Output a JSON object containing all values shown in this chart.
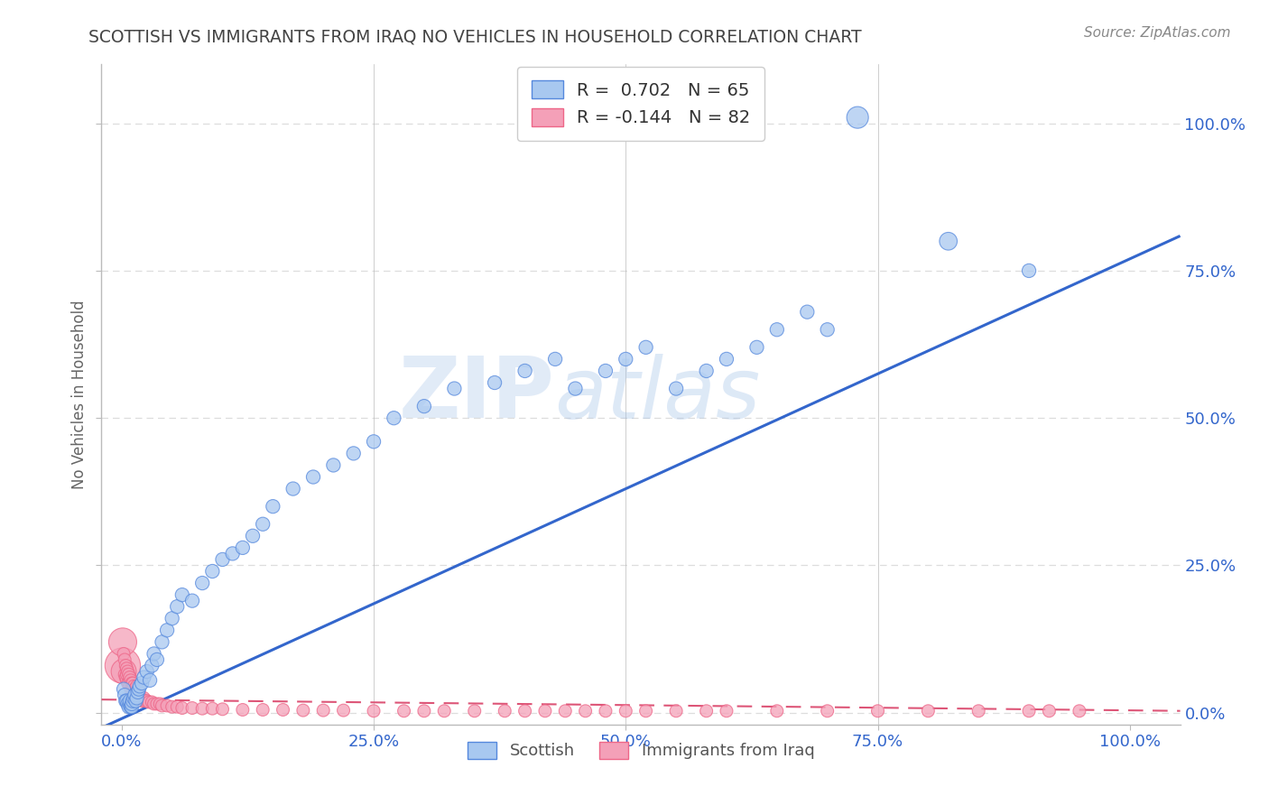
{
  "title": "SCOTTISH VS IMMIGRANTS FROM IRAQ NO VEHICLES IN HOUSEHOLD CORRELATION CHART",
  "source": "Source: ZipAtlas.com",
  "ylabel": "No Vehicles in Household",
  "watermark_zip": "ZIP",
  "watermark_atlas": "atlas",
  "legend_blue_r": "R =  0.702",
  "legend_blue_n": "N = 65",
  "legend_pink_r": "R = -0.144",
  "legend_pink_n": "N = 82",
  "ytick_labels": [
    "0.0%",
    "25.0%",
    "50.0%",
    "75.0%",
    "100.0%"
  ],
  "ytick_values": [
    0,
    0.25,
    0.5,
    0.75,
    1.0
  ],
  "xtick_labels": [
    "0.0%",
    "25.0%",
    "50.0%",
    "75.0%",
    "100.0%"
  ],
  "xtick_values": [
    0,
    0.25,
    0.5,
    0.75,
    1.0
  ],
  "blue_fill": "#A8C8F0",
  "pink_fill": "#F4A0B8",
  "blue_edge": "#5588DD",
  "pink_edge": "#EE6688",
  "blue_line": "#3366CC",
  "pink_line": "#DD5577",
  "background_color": "#FFFFFF",
  "grid_color": "#DDDDDD",
  "title_color": "#444444",
  "axis_label_color": "#3366CC",
  "blue_scatter_x": [
    0.002,
    0.003,
    0.004,
    0.005,
    0.006,
    0.007,
    0.008,
    0.008,
    0.009,
    0.01,
    0.01,
    0.011,
    0.012,
    0.013,
    0.014,
    0.015,
    0.016,
    0.017,
    0.018,
    0.02,
    0.022,
    0.025,
    0.028,
    0.03,
    0.032,
    0.035,
    0.04,
    0.045,
    0.05,
    0.055,
    0.06,
    0.07,
    0.08,
    0.09,
    0.1,
    0.11,
    0.12,
    0.13,
    0.14,
    0.15,
    0.17,
    0.19,
    0.21,
    0.23,
    0.25,
    0.27,
    0.3,
    0.33,
    0.37,
    0.4,
    0.43,
    0.45,
    0.48,
    0.5,
    0.52,
    0.55,
    0.58,
    0.6,
    0.63,
    0.65,
    0.68,
    0.7,
    0.73,
    0.82,
    0.9
  ],
  "blue_scatter_y": [
    0.04,
    0.03,
    0.02,
    0.02,
    0.015,
    0.01,
    0.015,
    0.02,
    0.01,
    0.01,
    0.015,
    0.02,
    0.025,
    0.03,
    0.02,
    0.025,
    0.035,
    0.04,
    0.045,
    0.05,
    0.06,
    0.07,
    0.055,
    0.08,
    0.1,
    0.09,
    0.12,
    0.14,
    0.16,
    0.18,
    0.2,
    0.19,
    0.22,
    0.24,
    0.26,
    0.27,
    0.28,
    0.3,
    0.32,
    0.35,
    0.38,
    0.4,
    0.42,
    0.44,
    0.46,
    0.5,
    0.52,
    0.55,
    0.56,
    0.58,
    0.6,
    0.55,
    0.58,
    0.6,
    0.62,
    0.55,
    0.58,
    0.6,
    0.62,
    0.65,
    0.68,
    0.65,
    1.01,
    0.8,
    0.75
  ],
  "pink_scatter_x": [
    0.001,
    0.001,
    0.002,
    0.002,
    0.003,
    0.003,
    0.004,
    0.004,
    0.005,
    0.005,
    0.005,
    0.006,
    0.006,
    0.007,
    0.007,
    0.008,
    0.008,
    0.009,
    0.009,
    0.01,
    0.01,
    0.011,
    0.011,
    0.012,
    0.012,
    0.013,
    0.013,
    0.014,
    0.015,
    0.015,
    0.016,
    0.017,
    0.018,
    0.019,
    0.02,
    0.022,
    0.023,
    0.025,
    0.027,
    0.03,
    0.032,
    0.035,
    0.038,
    0.04,
    0.045,
    0.05,
    0.055,
    0.06,
    0.07,
    0.08,
    0.09,
    0.1,
    0.12,
    0.14,
    0.16,
    0.18,
    0.2,
    0.22,
    0.25,
    0.28,
    0.3,
    0.32,
    0.35,
    0.38,
    0.4,
    0.42,
    0.44,
    0.46,
    0.48,
    0.5,
    0.52,
    0.55,
    0.58,
    0.6,
    0.65,
    0.7,
    0.75,
    0.8,
    0.85,
    0.9,
    0.92,
    0.95
  ],
  "pink_scatter_y": [
    0.08,
    0.12,
    0.07,
    0.1,
    0.065,
    0.09,
    0.06,
    0.08,
    0.055,
    0.075,
    0.065,
    0.05,
    0.07,
    0.05,
    0.065,
    0.045,
    0.06,
    0.04,
    0.055,
    0.04,
    0.05,
    0.04,
    0.05,
    0.035,
    0.045,
    0.035,
    0.04,
    0.03,
    0.035,
    0.045,
    0.03,
    0.025,
    0.03,
    0.025,
    0.02,
    0.025,
    0.02,
    0.02,
    0.018,
    0.018,
    0.015,
    0.015,
    0.015,
    0.012,
    0.012,
    0.01,
    0.01,
    0.008,
    0.008,
    0.007,
    0.007,
    0.006,
    0.005,
    0.005,
    0.005,
    0.004,
    0.004,
    0.004,
    0.003,
    0.003,
    0.003,
    0.003,
    0.003,
    0.003,
    0.003,
    0.003,
    0.003,
    0.003,
    0.003,
    0.003,
    0.003,
    0.003,
    0.003,
    0.003,
    0.003,
    0.003,
    0.003,
    0.003,
    0.003,
    0.003,
    0.003,
    0.003
  ]
}
